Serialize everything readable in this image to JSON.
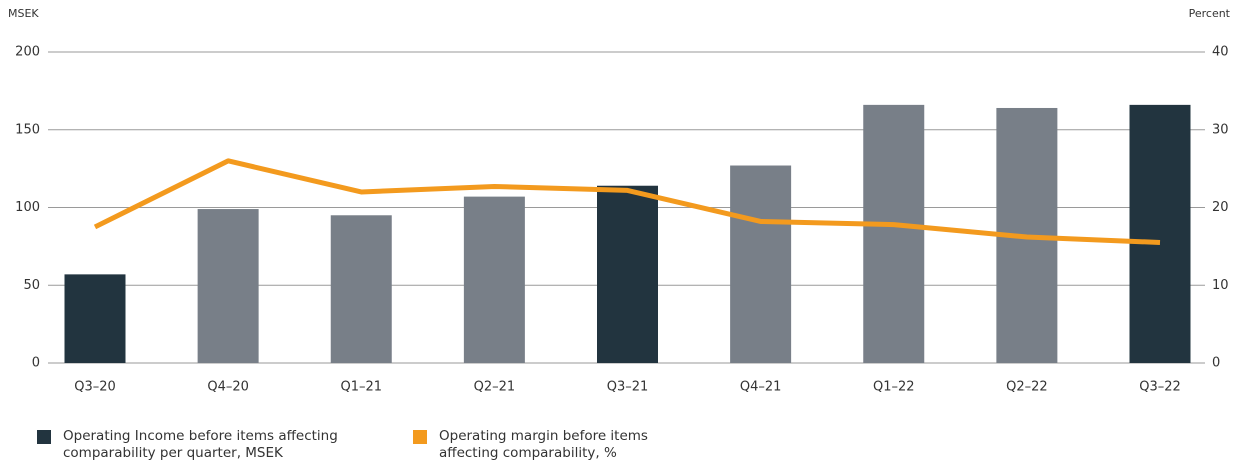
{
  "chart_data": {
    "type": "bar-line",
    "ylabel": "MSEK",
    "y2label": "Percent",
    "categories": [
      "Q3–20",
      "Q4–20",
      "Q1–21",
      "Q2–21",
      "Q3–21",
      "Q4–21",
      "Q1–22",
      "Q2–22",
      "Q3–22"
    ],
    "series": [
      {
        "name": "Operating Income before items affecting comparability per quarter, MSEK",
        "type": "bar",
        "color": "#22343f",
        "colors": [
          "#22343f",
          "#787f88",
          "#787f88",
          "#787f88",
          "#22343f",
          "#787f88",
          "#787f88",
          "#787f88",
          "#22343f"
        ],
        "values": [
          57,
          99,
          95,
          107,
          114,
          127,
          166,
          164,
          166
        ]
      },
      {
        "name": "Operating margin before items affecting comparability, %",
        "type": "line",
        "axis": "y2",
        "color": "#f39a1e",
        "values": [
          17.5,
          26,
          22,
          22.7,
          22.2,
          18.2,
          17.8,
          16.2,
          15.5
        ]
      }
    ],
    "ylim": [
      0,
      200
    ],
    "yticks": [
      0,
      50,
      100,
      150,
      200
    ],
    "y2lim": [
      0,
      40
    ],
    "y2ticks": [
      0,
      10,
      20,
      30,
      40
    ],
    "grid": true
  }
}
